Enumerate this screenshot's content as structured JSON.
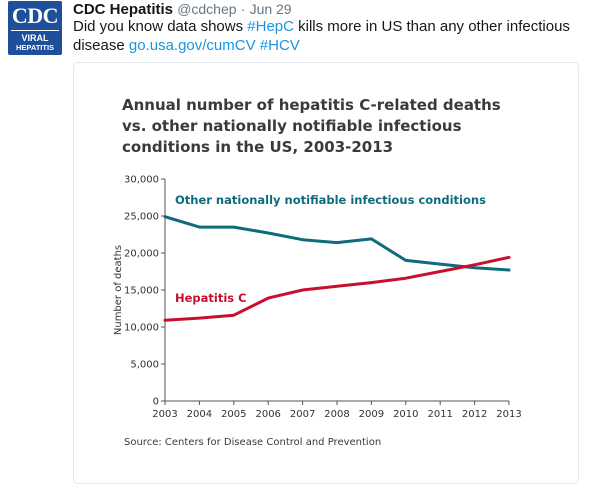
{
  "tweet": {
    "avatar": {
      "logo_top": "CDC",
      "logo_line1": "VIRAL",
      "logo_line2": "HEPATITIS",
      "bg_color": "#1e4f9a"
    },
    "author_name": "CDC Hepatitis",
    "handle": "@cdchep",
    "separator": "·",
    "timestamp": "Jun 29",
    "text_part1": "Did you know data shows ",
    "hashtag1": "#HepC",
    "text_part2": " kills more in US than any other infectious disease ",
    "link_url": "go.usa.gov/cumCV",
    "text_part3": " ",
    "hashtag2": "#HCV",
    "link_color": "#1b95e0"
  },
  "chart_data": {
    "type": "line",
    "title_lines": [
      "Annual number of hepatitis C-related deaths",
      "vs. other nationally notifiable infectious",
      "conditions in the US, 2003-2013"
    ],
    "xlabel": "",
    "ylabel": "Number of deaths",
    "x": [
      2003,
      2004,
      2005,
      2006,
      2007,
      2008,
      2009,
      2010,
      2011,
      2012,
      2013
    ],
    "x_tick_labels": [
      "2003",
      "2004",
      "2005",
      "2006",
      "2007",
      "2008",
      "2009",
      "2010",
      "2011",
      "2012",
      "2013"
    ],
    "y_ticks": [
      0,
      5000,
      10000,
      15000,
      20000,
      25000,
      30000
    ],
    "y_tick_labels": [
      "0",
      "5,000",
      "10,000",
      "15,000",
      "20,000",
      "25,000",
      "30,000"
    ],
    "ylim": [
      0,
      30000
    ],
    "grid": false,
    "series": [
      {
        "name": "Other nationally notifiable infectious conditions",
        "color": "#0e6b7c",
        "values": [
          24900,
          23500,
          23500,
          22700,
          21800,
          21400,
          21900,
          19000,
          18500,
          18000,
          17700
        ]
      },
      {
        "name": "Hepatitis C",
        "color": "#c8102e",
        "values": [
          10900,
          11200,
          11600,
          13900,
          15000,
          15500,
          16000,
          16600,
          17500,
          18400,
          19400
        ]
      }
    ],
    "source": "Source: Centers for Disease Control and Prevention"
  }
}
